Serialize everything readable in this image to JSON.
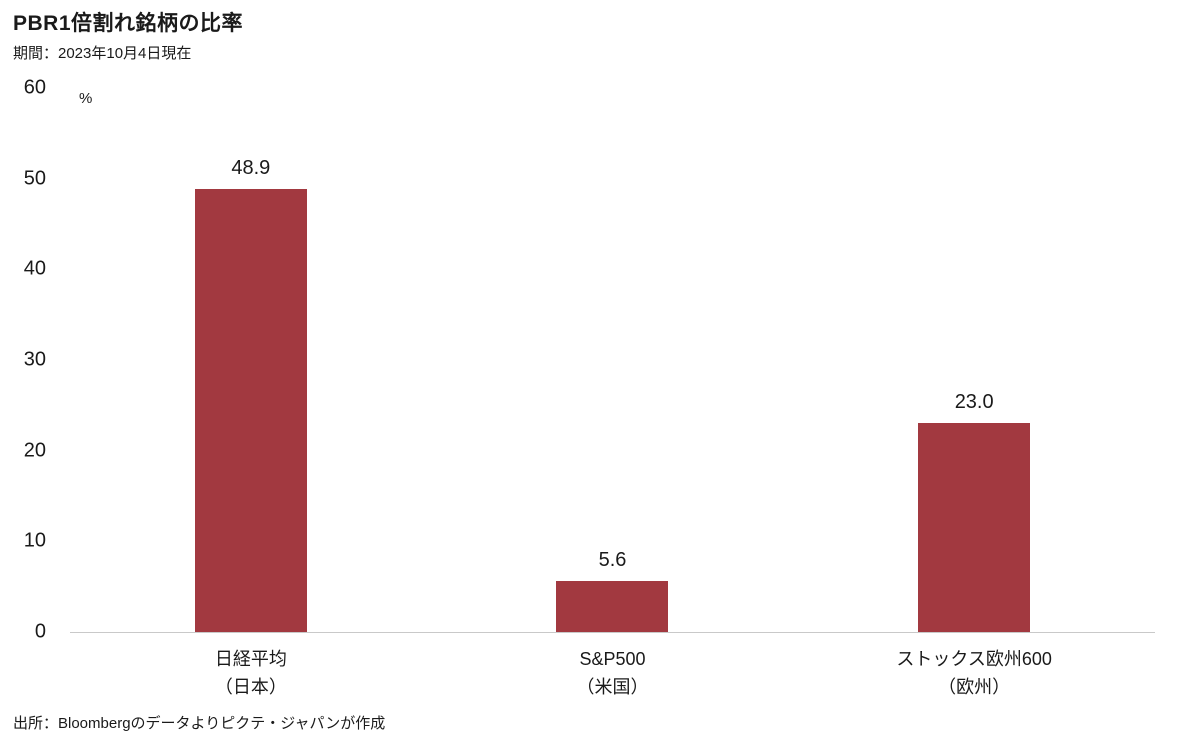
{
  "header": {
    "title": "PBR1倍割れ銘柄の比率",
    "subtitle": "期間：2023年10月4日現在"
  },
  "footer": {
    "source": "出所：Bloombergのデータよりピクテ・ジャパンが作成"
  },
  "chart_data": {
    "type": "bar",
    "title": "PBR1倍割れ銘柄の比率",
    "subtitle": "期間：2023年10月4日現在",
    "unit_label": "%",
    "ids": [
      "nikkei",
      "sp500",
      "stoxx600"
    ],
    "categories": [
      {
        "line1": "日経平均",
        "line2": "（日本）"
      },
      {
        "line1": "S&P500",
        "line2": "（米国）"
      },
      {
        "line1": "ストックス欧州600",
        "line2": "（欧州）"
      }
    ],
    "values": [
      48.9,
      5.6,
      23.0
    ],
    "value_labels": [
      "48.9",
      "5.6",
      "23.0"
    ],
    "ylim": [
      0,
      60
    ],
    "yticks": [
      0,
      10,
      20,
      30,
      40,
      50,
      60
    ],
    "grid": false,
    "legend": "none",
    "bar_color": "#A23940",
    "baseline_color": "#c9c9c9"
  }
}
